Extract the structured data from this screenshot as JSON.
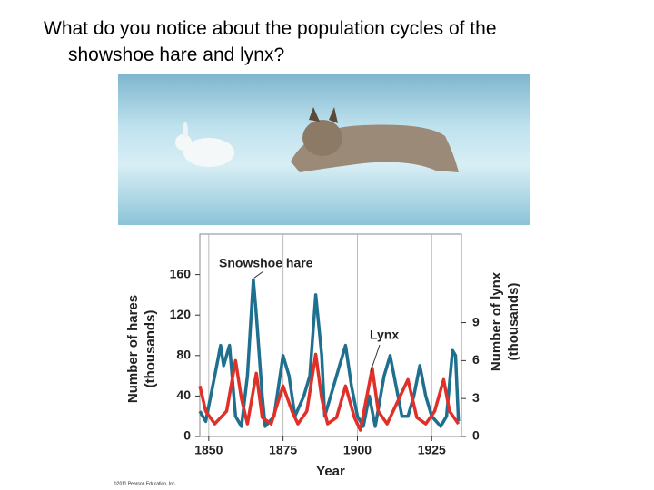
{
  "slide": {
    "question": "What do you notice about the population cycles of the showshoe hare and lynx?",
    "copyright": "©2011 Pearson Education, Inc."
  },
  "chart_data": {
    "type": "line",
    "xlabel": "Year",
    "ylabel": [
      "Number of hares",
      "(thousands)"
    ],
    "y2label": [
      "Number of lynx",
      "(thousands)"
    ],
    "xlim": [
      1847,
      1935
    ],
    "xticks": [
      1850,
      1875,
      1900,
      1925
    ],
    "ylim": [
      0,
      200
    ],
    "yticks": [
      0,
      40,
      80,
      120,
      160
    ],
    "y2lim": [
      0,
      16
    ],
    "y2ticks": [
      0,
      3,
      6,
      9
    ],
    "grid": "x",
    "series": [
      {
        "name": "Snowshoe hare",
        "color": "#1f6f8f",
        "x": [
          1847,
          1849,
          1852,
          1854,
          1855,
          1857,
          1859,
          1861,
          1863,
          1865,
          1866,
          1868,
          1869,
          1872,
          1875,
          1877,
          1879,
          1882,
          1884,
          1886,
          1888,
          1889,
          1892,
          1894,
          1896,
          1898,
          1900,
          1902,
          1904,
          1906,
          1909,
          1911,
          1913,
          1915,
          1917,
          1919,
          1921,
          1923,
          1925,
          1928,
          1930,
          1932,
          1933,
          1934
        ],
        "values": [
          25,
          15,
          60,
          90,
          70,
          90,
          20,
          10,
          60,
          155,
          120,
          40,
          10,
          20,
          80,
          60,
          20,
          40,
          60,
          140,
          80,
          20,
          50,
          70,
          90,
          50,
          20,
          10,
          40,
          10,
          60,
          80,
          50,
          20,
          20,
          40,
          70,
          40,
          20,
          10,
          20,
          85,
          80,
          15
        ]
      },
      {
        "name": "Lynx",
        "color": "#e0302a",
        "axis": "y2",
        "x": [
          1847,
          1849,
          1852,
          1856,
          1859,
          1861,
          1863,
          1866,
          1868,
          1871,
          1875,
          1878,
          1880,
          1883,
          1886,
          1888,
          1890,
          1893,
          1896,
          1899,
          1901,
          1905,
          1907,
          1910,
          1913,
          1917,
          1920,
          1923,
          1926,
          1929,
          1931,
          1934
        ],
        "values": [
          4,
          2,
          1,
          2,
          6,
          3,
          1,
          5,
          1.5,
          1,
          4,
          2,
          1,
          2,
          6.5,
          3,
          1,
          1.5,
          4,
          1.5,
          0.5,
          5.4,
          2,
          1,
          2.5,
          4.5,
          1.5,
          1,
          2,
          4.5,
          2,
          1
        ]
      }
    ]
  }
}
